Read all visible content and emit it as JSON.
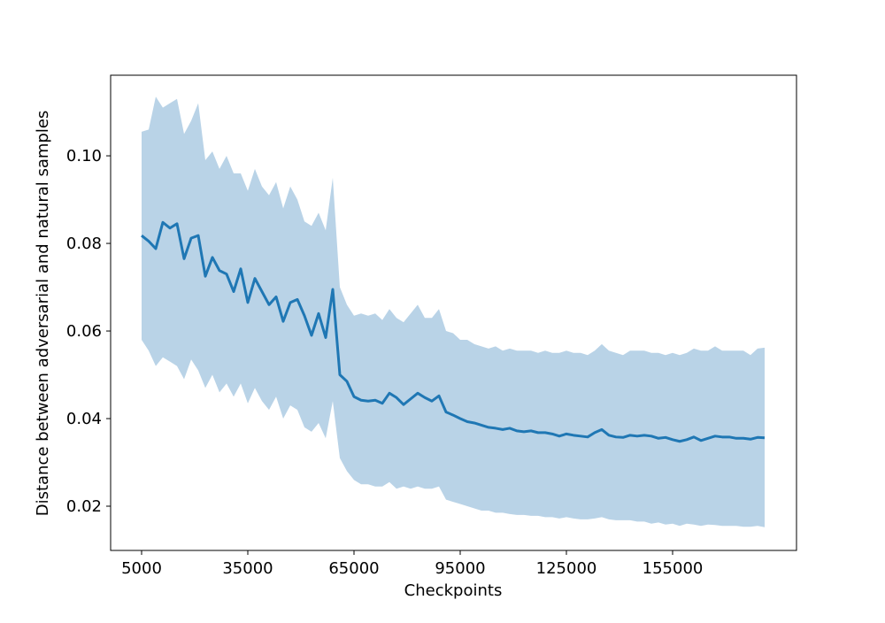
{
  "chart_data": {
    "type": "line",
    "xlabel": "Checkpoints",
    "ylabel": "Distance between adversarial and natural samples",
    "x": [
      5000,
      7000,
      9000,
      11000,
      13000,
      15000,
      17000,
      19000,
      21000,
      23000,
      25000,
      27000,
      29000,
      31000,
      33000,
      35000,
      37000,
      39000,
      41000,
      43000,
      45000,
      47000,
      49000,
      51000,
      53000,
      55000,
      57000,
      59000,
      61000,
      63000,
      65000,
      67000,
      69000,
      71000,
      73000,
      75000,
      77000,
      79000,
      81000,
      83000,
      85000,
      87000,
      89000,
      91000,
      93000,
      95000,
      97000,
      99000,
      101000,
      103000,
      105000,
      107000,
      109000,
      111000,
      113000,
      115000,
      117000,
      119000,
      121000,
      123000,
      125000,
      127000,
      129000,
      131000,
      133000,
      135000,
      137000,
      139000,
      141000,
      143000,
      145000,
      147000,
      149000,
      151000,
      153000,
      155000,
      157000,
      159000,
      161000,
      163000,
      165000,
      167000,
      169000,
      171000,
      173000,
      175000,
      177000,
      179000,
      181000
    ],
    "values": [
      0.0818,
      0.0805,
      0.0788,
      0.0848,
      0.0835,
      0.0845,
      0.0765,
      0.0812,
      0.0818,
      0.0725,
      0.0768,
      0.0738,
      0.073,
      0.069,
      0.0742,
      0.0665,
      0.072,
      0.069,
      0.066,
      0.0678,
      0.0622,
      0.0665,
      0.0672,
      0.0635,
      0.059,
      0.064,
      0.0585,
      0.0695,
      0.05,
      0.0485,
      0.045,
      0.0442,
      0.044,
      0.0442,
      0.0435,
      0.0458,
      0.0448,
      0.0432,
      0.0445,
      0.0458,
      0.0448,
      0.044,
      0.0452,
      0.0415,
      0.0408,
      0.04,
      0.0393,
      0.039,
      0.0385,
      0.038,
      0.0378,
      0.0375,
      0.0378,
      0.0372,
      0.037,
      0.0372,
      0.0368,
      0.0368,
      0.0365,
      0.036,
      0.0365,
      0.0362,
      0.036,
      0.0358,
      0.0368,
      0.0375,
      0.0362,
      0.0358,
      0.0357,
      0.0362,
      0.036,
      0.0362,
      0.036,
      0.0355,
      0.0357,
      0.0352,
      0.0348,
      0.0352,
      0.0358,
      0.035,
      0.0355,
      0.036,
      0.0358,
      0.0358,
      0.0355,
      0.0355,
      0.0353,
      0.0357,
      0.0356
    ],
    "upper": [
      0.1055,
      0.106,
      0.1135,
      0.111,
      0.112,
      0.113,
      0.105,
      0.108,
      0.112,
      0.099,
      0.101,
      0.097,
      0.1,
      0.096,
      0.096,
      0.092,
      0.097,
      0.093,
      0.091,
      0.094,
      0.088,
      0.093,
      0.09,
      0.085,
      0.084,
      0.087,
      0.083,
      0.095,
      0.07,
      0.066,
      0.0635,
      0.064,
      0.0635,
      0.064,
      0.0625,
      0.065,
      0.063,
      0.062,
      0.064,
      0.066,
      0.063,
      0.063,
      0.065,
      0.06,
      0.0595,
      0.058,
      0.058,
      0.057,
      0.0565,
      0.056,
      0.0565,
      0.0555,
      0.056,
      0.0555,
      0.0555,
      0.0555,
      0.055,
      0.0555,
      0.055,
      0.055,
      0.0555,
      0.055,
      0.055,
      0.0545,
      0.0555,
      0.057,
      0.0555,
      0.055,
      0.0545,
      0.0555,
      0.0555,
      0.0555,
      0.055,
      0.055,
      0.0545,
      0.055,
      0.0545,
      0.055,
      0.056,
      0.0555,
      0.0555,
      0.0565,
      0.0555,
      0.0555,
      0.0555,
      0.0555,
      0.0545,
      0.056,
      0.0562
    ],
    "lower": [
      0.058,
      0.0555,
      0.052,
      0.054,
      0.053,
      0.052,
      0.049,
      0.0535,
      0.051,
      0.047,
      0.05,
      0.046,
      0.048,
      0.045,
      0.048,
      0.0435,
      0.047,
      0.044,
      0.042,
      0.045,
      0.04,
      0.043,
      0.042,
      0.038,
      0.037,
      0.039,
      0.0355,
      0.044,
      0.031,
      0.028,
      0.026,
      0.025,
      0.025,
      0.0245,
      0.0245,
      0.0255,
      0.024,
      0.0245,
      0.024,
      0.0245,
      0.024,
      0.024,
      0.0245,
      0.0215,
      0.021,
      0.0205,
      0.02,
      0.0195,
      0.019,
      0.019,
      0.0185,
      0.0185,
      0.0182,
      0.018,
      0.018,
      0.0178,
      0.0178,
      0.0175,
      0.0175,
      0.0172,
      0.0175,
      0.0172,
      0.017,
      0.017,
      0.0172,
      0.0175,
      0.017,
      0.0168,
      0.0168,
      0.0168,
      0.0165,
      0.0165,
      0.016,
      0.0163,
      0.0158,
      0.016,
      0.0155,
      0.016,
      0.0158,
      0.0155,
      0.0158,
      0.0157,
      0.0155,
      0.0155,
      0.0155,
      0.0153,
      0.0153,
      0.0155,
      0.0152
    ],
    "color": "#1f77b4",
    "band_color": "#b9d3e7",
    "xlim": [
      -3750,
      190000
    ],
    "xticks": [
      5000,
      35000,
      65000,
      95000,
      125000,
      155000
    ],
    "ylim": [
      0.0099,
      0.1184
    ],
    "yticks": [
      0.02,
      0.04,
      0.06,
      0.08,
      {
        "value": 0.1,
        "label": "0.10"
      }
    ]
  }
}
